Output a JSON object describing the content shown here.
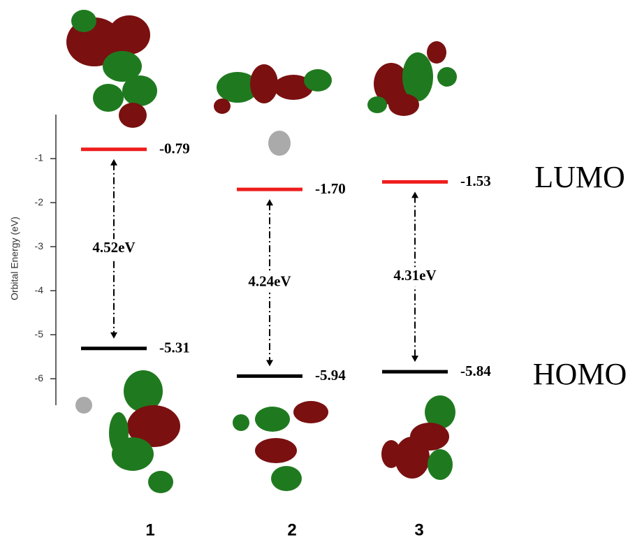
{
  "chart_data": {
    "type": "energy-level",
    "y_label": "Orbital Energy (eV)",
    "categories": [
      "1",
      "2",
      "3"
    ],
    "series": [
      {
        "name": "LUMO",
        "color": "#ee1c1c",
        "values": [
          -0.79,
          -1.7,
          -1.53
        ],
        "value_labels": [
          "-0.79",
          "-1.70",
          "-1.53"
        ]
      },
      {
        "name": "HOMO",
        "color": "#000000",
        "values": [
          -5.31,
          -5.94,
          -5.84
        ],
        "value_labels": [
          "-5.31",
          "-5.94",
          "-5.84"
        ]
      }
    ],
    "gaps": {
      "values": [
        4.52,
        4.24,
        4.31
      ],
      "value_labels": [
        "4.52eV",
        "4.24eV",
        "4.31eV"
      ]
    },
    "ylim": [
      -6.6,
      0
    ],
    "yticks": [
      -1,
      -2,
      -3,
      -4,
      -5,
      -6
    ]
  }
}
